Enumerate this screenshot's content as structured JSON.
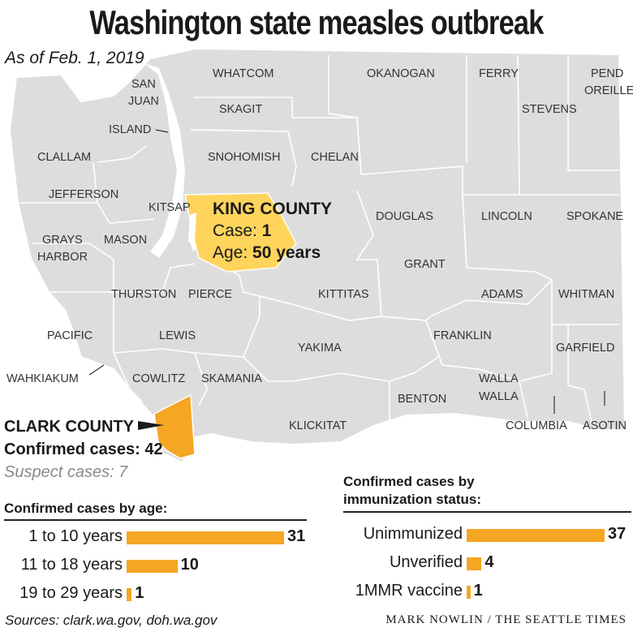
{
  "title": "Washington state measles outbreak",
  "date": "As of Feb. 1, 2019",
  "colors": {
    "land": "#dddddd",
    "border": "#ffffff",
    "king": "#ffd45c",
    "clark": "#f5a623",
    "bar": "#f5a623"
  },
  "counties": [
    "WHATCOM",
    "OKANOGAN",
    "FERRY",
    "PEND",
    "OREILLE",
    "SAN",
    "JUAN",
    "SKAGIT",
    "STEVENS",
    "ISLAND",
    "CLALLAM",
    "SNOHOMISH",
    "CHELAN",
    "JEFFERSON",
    "KITSAP",
    "DOUGLAS",
    "LINCOLN",
    "SPOKANE",
    "GRAYS",
    "HARBOR",
    "MASON",
    "GRANT",
    "THURSTON",
    "PIERCE",
    "KITTITAS",
    "ADAMS",
    "WHITMAN",
    "PACIFIC",
    "LEWIS",
    "FRANKLIN",
    "GARFIELD",
    "YAKIMA",
    "WAHKIAKUM",
    "COWLITZ",
    "SKAMANIA",
    "WALLA",
    "WALLA",
    "BENTON",
    "KLICKITAT",
    "COLUMBIA",
    "ASOTIN"
  ],
  "king": {
    "name": "KING COUNTY",
    "case_label": "Case:",
    "case_value": "1",
    "age_label": "Age:",
    "age_value": "50 years"
  },
  "clark": {
    "name": "CLARK COUNTY",
    "confirmed_label": "Confirmed cases:",
    "confirmed_value": "42",
    "suspect": "Suspect cases: 7"
  },
  "age_chart": {
    "heading": "Confirmed cases by age:",
    "chart_data": {
      "type": "bar",
      "categories": [
        "1 to 10 years",
        "11 to 18 years",
        "19 to 29 years"
      ],
      "values": [
        31,
        10,
        1
      ]
    },
    "value_labels": [
      "31",
      "10",
      "1"
    ]
  },
  "imm_chart": {
    "heading_1": "Confirmed cases by",
    "heading_2": "immunization status:",
    "chart_data": {
      "type": "bar",
      "categories": [
        "Unimmunized",
        "Unverified",
        "1MMR vaccine"
      ],
      "values": [
        37,
        4,
        1
      ]
    },
    "value_labels": [
      "37",
      "4",
      "1"
    ]
  },
  "sources": "Sources: clark.wa.gov, doh.wa.gov",
  "credit": "MARK NOWLIN / THE SEATTLE TIMES"
}
